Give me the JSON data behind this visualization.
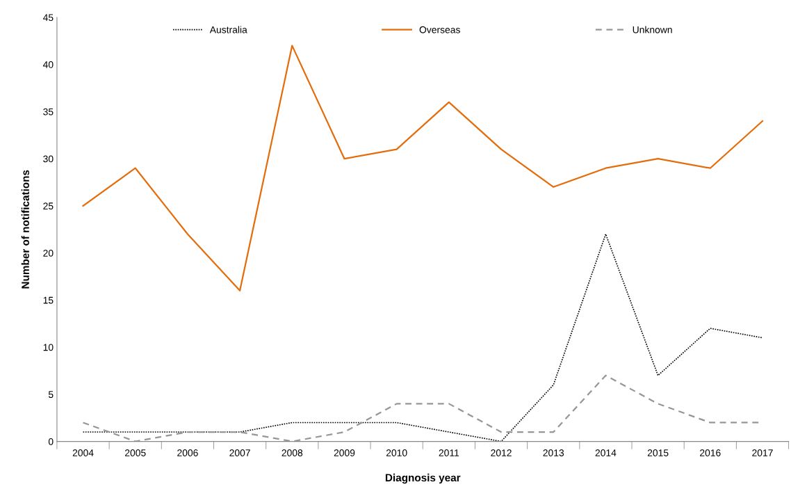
{
  "chart_data": {
    "type": "line",
    "xlabel": "Diagnosis year",
    "ylabel": "Number of notifications",
    "categories": [
      "2004",
      "2005",
      "2006",
      "2007",
      "2008",
      "2009",
      "2010",
      "2011",
      "2012",
      "2013",
      "2014",
      "2015",
      "2016",
      "2017"
    ],
    "series": [
      {
        "name": "Australia",
        "color": "#000000",
        "line_style": "dotted",
        "values": [
          1,
          1,
          1,
          1,
          2,
          2,
          2,
          1,
          0,
          6,
          22,
          7,
          12,
          11
        ]
      },
      {
        "name": "Overseas",
        "color": "#e46c0a",
        "line_style": "solid",
        "values": [
          25,
          29,
          22,
          16,
          42,
          30,
          31,
          36,
          31,
          27,
          29,
          30,
          29,
          34
        ]
      },
      {
        "name": "Unknown",
        "color": "#969696",
        "line_style": "dashed",
        "values": [
          2,
          0,
          1,
          1,
          0,
          1,
          4,
          4,
          1,
          1,
          7,
          4,
          2,
          2
        ]
      }
    ],
    "ylim": [
      0,
      45
    ],
    "yticks": [
      0,
      5,
      10,
      15,
      20,
      25,
      30,
      35,
      40,
      45
    ],
    "grid": false,
    "legend": "top",
    "marker": "none"
  }
}
